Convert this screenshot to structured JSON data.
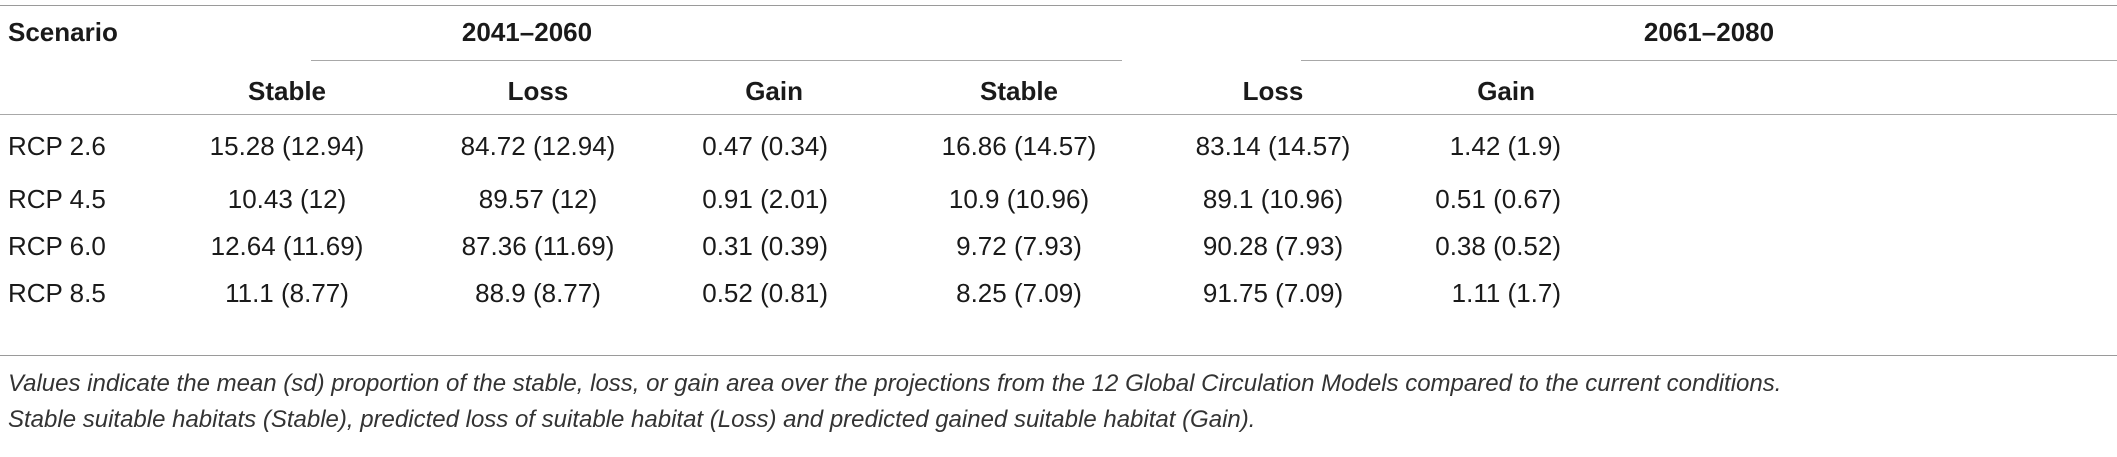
{
  "table": {
    "header": {
      "scenario": "Scenario",
      "period1": "2041–2060",
      "period2": "2061–2080",
      "sub": [
        "Stable",
        "Loss",
        "Gain",
        "Stable",
        "Loss",
        "Gain"
      ]
    },
    "rows": [
      [
        "RCP 2.6",
        "15.28 (12.94)",
        "84.72 (12.94)",
        "0.47 (0.34)",
        "16.86 (14.57)",
        "83.14 (14.57)",
        "1.42 (1.9)"
      ],
      [
        "RCP 4.5",
        "10.43 (12)",
        "89.57 (12)",
        "0.91 (2.01)",
        "10.9 (10.96)",
        "89.1 (10.96)",
        "0.51 (0.67)"
      ],
      [
        "RCP 6.0",
        "12.64 (11.69)",
        "87.36 (11.69)",
        "0.31 (0.39)",
        "9.72 (7.93)",
        "90.28 (7.93)",
        "0.38 (0.52)"
      ],
      [
        "RCP 8.5",
        "11.1 (8.77)",
        "88.9 (8.77)",
        "0.52 (0.81)",
        "8.25 (7.09)",
        "91.75 (7.09)",
        "1.11 (1.7)"
      ]
    ]
  },
  "footnote": {
    "line1": "Values indicate the mean (sd) proportion of the stable, loss, or gain area over the projections from the 12 Global Circulation Models compared to the current conditions.",
    "line2": "Stable suitable habitats (Stable), predicted loss of suitable habitat (Loss) and predicted gained suitable habitat (Gain)."
  }
}
